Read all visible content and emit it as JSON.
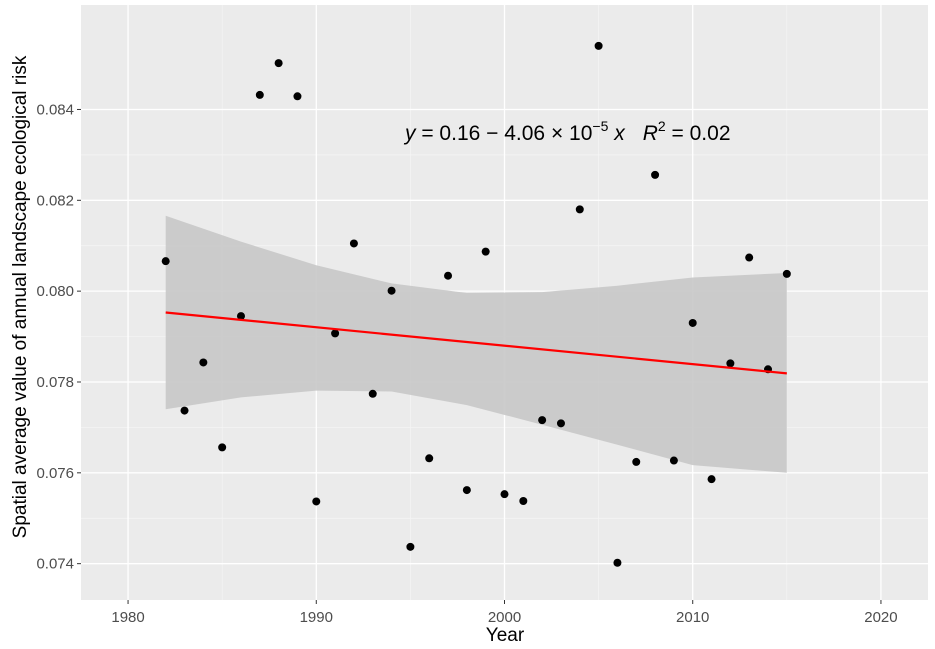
{
  "chart_data": {
    "type": "scatter",
    "xlabel": "Year",
    "ylabel": "Spatial average value of annual landscape ecological risk",
    "xlim": [
      1977.5,
      2022.5
    ],
    "ylim": [
      0.0732,
      0.0863
    ],
    "x_ticks": [
      1980,
      1990,
      2000,
      2010,
      2020
    ],
    "y_ticks": [
      0.074,
      0.076,
      0.078,
      0.08,
      0.082,
      0.084
    ],
    "x_tick_labels": [
      "1980",
      "1990",
      "2000",
      "2010",
      "2020"
    ],
    "y_tick_labels": [
      "0.074",
      "0.076",
      "0.078",
      "0.080",
      "0.082",
      "0.084"
    ],
    "grid": true,
    "background": "#ebebeb",
    "points": [
      {
        "x": 1982,
        "y": 0.08066
      },
      {
        "x": 1983,
        "y": 0.07737
      },
      {
        "x": 1984,
        "y": 0.07843
      },
      {
        "x": 1985,
        "y": 0.07656
      },
      {
        "x": 1986,
        "y": 0.07945
      },
      {
        "x": 1987,
        "y": 0.08432
      },
      {
        "x": 1988,
        "y": 0.08502
      },
      {
        "x": 1989,
        "y": 0.08429
      },
      {
        "x": 1990,
        "y": 0.07537
      },
      {
        "x": 1991,
        "y": 0.07907
      },
      {
        "x": 1992,
        "y": 0.08105
      },
      {
        "x": 1993,
        "y": 0.07774
      },
      {
        "x": 1994,
        "y": 0.08001
      },
      {
        "x": 1995,
        "y": 0.07437
      },
      {
        "x": 1996,
        "y": 0.07632
      },
      {
        "x": 1997,
        "y": 0.08034
      },
      {
        "x": 1998,
        "y": 0.07562
      },
      {
        "x": 1999,
        "y": 0.08087
      },
      {
        "x": 2000,
        "y": 0.07553
      },
      {
        "x": 2001,
        "y": 0.07538
      },
      {
        "x": 2002,
        "y": 0.07716
      },
      {
        "x": 2003,
        "y": 0.07709
      },
      {
        "x": 2004,
        "y": 0.0818
      },
      {
        "x": 2005,
        "y": 0.0854
      },
      {
        "x": 2006,
        "y": 0.07402
      },
      {
        "x": 2007,
        "y": 0.07624
      },
      {
        "x": 2008,
        "y": 0.08256
      },
      {
        "x": 2009,
        "y": 0.07627
      },
      {
        "x": 2010,
        "y": 0.0793
      },
      {
        "x": 2011,
        "y": 0.07586
      },
      {
        "x": 2012,
        "y": 0.07841
      },
      {
        "x": 2013,
        "y": 0.08074
      },
      {
        "x": 2014,
        "y": 0.07828
      },
      {
        "x": 2015,
        "y": 0.08038
      }
    ],
    "point_color": "#000000",
    "regression": {
      "x": [
        1982,
        2015
      ],
      "y": [
        0.07953,
        0.07819
      ],
      "color": "#ff0000"
    },
    "confidence_band": {
      "x": [
        1982,
        1986,
        1990,
        1994,
        1998,
        2002,
        2006,
        2010,
        2015
      ],
      "upper": [
        0.08166,
        0.08109,
        0.08057,
        0.08017,
        0.07996,
        0.07998,
        0.08012,
        0.0803,
        0.0804
      ],
      "lower": [
        0.0774,
        0.07766,
        0.07781,
        0.07779,
        0.07749,
        0.07706,
        0.07662,
        0.07617,
        0.076
      ],
      "color": "#c8c8c8"
    },
    "annotation": {
      "y": "y",
      "eq1": " = 0.16 − 4.06 × 10",
      "exp": "−5",
      "xvar": " x",
      "r": "R",
      "r_exp": "2",
      "r_val": " = 0.02"
    }
  }
}
